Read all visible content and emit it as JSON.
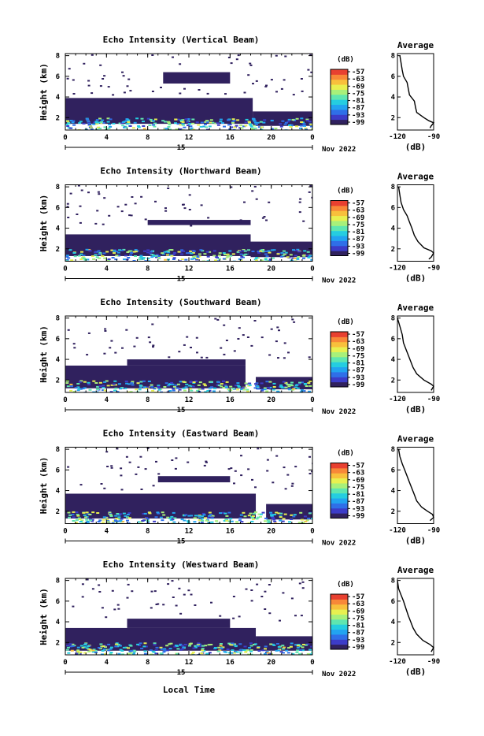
{
  "figure": {
    "xlabel": "Local Time",
    "date_label": "Nov 2022",
    "day_label": "15"
  },
  "colorbar": {
    "unit_label": "(dB)",
    "tick_labels": [
      "-57",
      "-63",
      "-69",
      "-75",
      "-81",
      "-87",
      "-93",
      "-99"
    ],
    "colors": [
      "#30215e",
      "#3c3cc8",
      "#2f6fe8",
      "#22a3f0",
      "#25cde0",
      "#5fe6b0",
      "#a8f07a",
      "#e8f050",
      "#f8c03c",
      "#f88838",
      "#e84030"
    ]
  },
  "panels": [
    {
      "title": "Echo Intensity (Vertical Beam)",
      "ylabel": "Height (km)",
      "avg_title": "Average",
      "avg_xlabel": "(dB)"
    },
    {
      "title": "Echo Intensity (Northward Beam)",
      "ylabel": "Height (km)",
      "avg_title": "Average",
      "avg_xlabel": "(dB)"
    },
    {
      "title": "Echo Intensity (Southward Beam)",
      "ylabel": "Height (km)",
      "avg_title": "Average",
      "avg_xlabel": "(dB)"
    },
    {
      "title": "Echo Intensity (Eastward Beam)",
      "ylabel": "Height (km)",
      "avg_title": "Average",
      "avg_xlabel": "(dB)"
    },
    {
      "title": "Echo Intensity (Westward Beam)",
      "ylabel": "Height (km)",
      "avg_title": "Average",
      "avg_xlabel": "(dB)"
    }
  ],
  "chart_data": {
    "type": "heatmap",
    "x_tick_labels": [
      "0",
      "4",
      "8",
      "12",
      "16",
      "20",
      "0"
    ],
    "x_ticks_hours": [
      0,
      4,
      8,
      12,
      16,
      20,
      24
    ],
    "xlim_hours": [
      0,
      24
    ],
    "y_tick_labels": [
      "2",
      "4",
      "6",
      "8"
    ],
    "y_ticks_km": [
      2,
      4,
      6,
      8
    ],
    "ylim_km": [
      0.8,
      8.2
    ],
    "color_scale_db": [
      -99,
      -57
    ],
    "panels": [
      {
        "beam": "Vertical",
        "layers": [
          {
            "start_h": 0,
            "end_h": 18.2,
            "bottom_km": 1.4,
            "top_km": 3.9,
            "db": -99
          },
          {
            "start_h": 18.2,
            "end_h": 24,
            "bottom_km": 1.2,
            "top_km": 2.6,
            "db": -99
          },
          {
            "start_h": 9.5,
            "end_h": 16,
            "bottom_km": 5.3,
            "top_km": 6.4,
            "db": -99
          }
        ],
        "avg_profile": {
          "x_tick_labels": [
            "-120",
            "-90"
          ],
          "xlim_db": [
            -120,
            -90
          ],
          "y_tick_labels": [
            "2",
            "4",
            "6",
            "8"
          ],
          "ylim_km": [
            0.8,
            8.2
          ],
          "points": [
            [
              -118,
              8
            ],
            [
              -117,
              7.3
            ],
            [
              -116,
              6.6
            ],
            [
              -115,
              6.0
            ],
            [
              -112,
              5.4
            ],
            [
              -111,
              4.8
            ],
            [
              -110,
              4.2
            ],
            [
              -106,
              3.6
            ],
            [
              -105,
              3.0
            ],
            [
              -104,
              2.5
            ],
            [
              -98,
              2.0
            ],
            [
              -94,
              1.7
            ],
            [
              -90,
              1.5
            ],
            [
              -92,
              1.2
            ],
            [
              -93,
              1.0
            ]
          ]
        }
      },
      {
        "beam": "Northward",
        "layers": [
          {
            "start_h": 0,
            "end_h": 18.0,
            "bottom_km": 1.3,
            "top_km": 3.4,
            "db": -99
          },
          {
            "start_h": 18.0,
            "end_h": 24,
            "bottom_km": 1.2,
            "top_km": 2.7,
            "db": -99
          },
          {
            "start_h": 8,
            "end_h": 18,
            "bottom_km": 4.3,
            "top_km": 4.8,
            "db": -99
          }
        ],
        "avg_profile": {
          "x_tick_labels": [
            "-120",
            "-90"
          ],
          "xlim_db": [
            -120,
            -90
          ],
          "y_tick_labels": [
            "2",
            "4",
            "6",
            "8"
          ],
          "ylim_km": [
            0.8,
            8.2
          ],
          "points": [
            [
              -119,
              8
            ],
            [
              -118,
              7.2
            ],
            [
              -117,
              6.5
            ],
            [
              -115,
              5.8
            ],
            [
              -112,
              5.2
            ],
            [
              -110,
              4.6
            ],
            [
              -108,
              4.0
            ],
            [
              -106,
              3.3
            ],
            [
              -103,
              2.7
            ],
            [
              -98,
              2.1
            ],
            [
              -92,
              1.8
            ],
            [
              -90,
              1.6
            ],
            [
              -92,
              1.2
            ],
            [
              -94,
              1.0
            ]
          ]
        }
      },
      {
        "beam": "Southward",
        "layers": [
          {
            "start_h": 0,
            "end_h": 17.5,
            "bottom_km": 1.2,
            "top_km": 3.4,
            "db": -99
          },
          {
            "start_h": 18.5,
            "end_h": 24,
            "bottom_km": 1.1,
            "top_km": 2.3,
            "db": -99
          },
          {
            "start_h": 6,
            "end_h": 17.5,
            "bottom_km": 3.4,
            "top_km": 4.0,
            "db": -99
          }
        ],
        "avg_profile": {
          "x_tick_labels": [
            "-120",
            "-90"
          ],
          "xlim_db": [
            -120,
            -90
          ],
          "y_tick_labels": [
            "2",
            "4",
            "6",
            "8"
          ],
          "ylim_km": [
            0.8,
            8.2
          ],
          "points": [
            [
              -120,
              8
            ],
            [
              -118,
              7.2
            ],
            [
              -116,
              6.4
            ],
            [
              -115,
              5.6
            ],
            [
              -113,
              5.0
            ],
            [
              -111,
              4.4
            ],
            [
              -109,
              3.8
            ],
            [
              -107,
              3.2
            ],
            [
              -104,
              2.6
            ],
            [
              -98,
              2.0
            ],
            [
              -92,
              1.6
            ],
            [
              -90,
              1.4
            ],
            [
              -92,
              1.0
            ]
          ]
        }
      },
      {
        "beam": "Eastward",
        "layers": [
          {
            "start_h": 0,
            "end_h": 18.5,
            "bottom_km": 1.3,
            "top_km": 3.7,
            "db": -99
          },
          {
            "start_h": 19.5,
            "end_h": 24,
            "bottom_km": 1.2,
            "top_km": 2.7,
            "db": -99
          },
          {
            "start_h": 9,
            "end_h": 16,
            "bottom_km": 4.8,
            "top_km": 5.4,
            "db": -99
          }
        ],
        "avg_profile": {
          "x_tick_labels": [
            "-120",
            "-90"
          ],
          "xlim_db": [
            -120,
            -90
          ],
          "y_tick_labels": [
            "2",
            "4",
            "6",
            "8"
          ],
          "ylim_km": [
            0.8,
            8.2
          ],
          "points": [
            [
              -119,
              8
            ],
            [
              -118,
              7.3
            ],
            [
              -116,
              6.6
            ],
            [
              -114,
              6.0
            ],
            [
              -112,
              5.4
            ],
            [
              -110,
              4.8
            ],
            [
              -108,
              4.2
            ],
            [
              -106,
              3.6
            ],
            [
              -104,
              3.0
            ],
            [
              -100,
              2.4
            ],
            [
              -95,
              2.0
            ],
            [
              -91,
              1.7
            ],
            [
              -90,
              1.4
            ],
            [
              -93,
              1.1
            ]
          ]
        }
      },
      {
        "beam": "Westward",
        "layers": [
          {
            "start_h": 0,
            "end_h": 18.5,
            "bottom_km": 1.2,
            "top_km": 3.4,
            "db": -99
          },
          {
            "start_h": 18.5,
            "end_h": 24,
            "bottom_km": 1.2,
            "top_km": 2.6,
            "db": -99
          },
          {
            "start_h": 6,
            "end_h": 16,
            "bottom_km": 3.4,
            "top_km": 4.3,
            "db": -99
          }
        ],
        "avg_profile": {
          "x_tick_labels": [
            "-120",
            "-90"
          ],
          "xlim_db": [
            -120,
            -90
          ],
          "y_tick_labels": [
            "2",
            "4",
            "6",
            "8"
          ],
          "ylim_km": [
            0.8,
            8.2
          ],
          "points": [
            [
              -120,
              8
            ],
            [
              -119,
              7.2
            ],
            [
              -117,
              6.6
            ],
            [
              -115,
              6.0
            ],
            [
              -113,
              5.3
            ],
            [
              -111,
              4.6
            ],
            [
              -109,
              4.0
            ],
            [
              -107,
              3.4
            ],
            [
              -104,
              2.8
            ],
            [
              -99,
              2.2
            ],
            [
              -93,
              1.8
            ],
            [
              -90,
              1.5
            ],
            [
              -92,
              1.1
            ]
          ]
        }
      }
    ]
  }
}
